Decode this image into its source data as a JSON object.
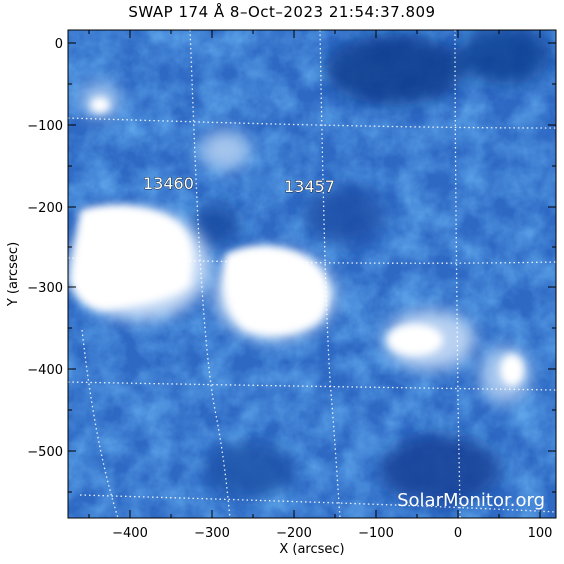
{
  "title": "SWAP 174 Å  8–Oct–2023 21:54:37.809",
  "axes": {
    "x_label": "X (arcsec)",
    "y_label": "Y (arcsec)",
    "x_ticks": [
      "−400",
      "−300",
      "−200",
      "−100",
      "0",
      "100"
    ],
    "y_ticks": [
      "0",
      "−100",
      "−200",
      "−300",
      "−400",
      "−500"
    ]
  },
  "regions": [
    {
      "label": "13460"
    },
    {
      "label": "13457"
    }
  ],
  "watermark": "SolarMonitor.org",
  "colors": {
    "background": "#ffffff",
    "solar_dark": "#0d3a8c",
    "solar_mid": "#3f7fd2",
    "solar_bright": "#ffffff",
    "grid": "#ffffff"
  }
}
